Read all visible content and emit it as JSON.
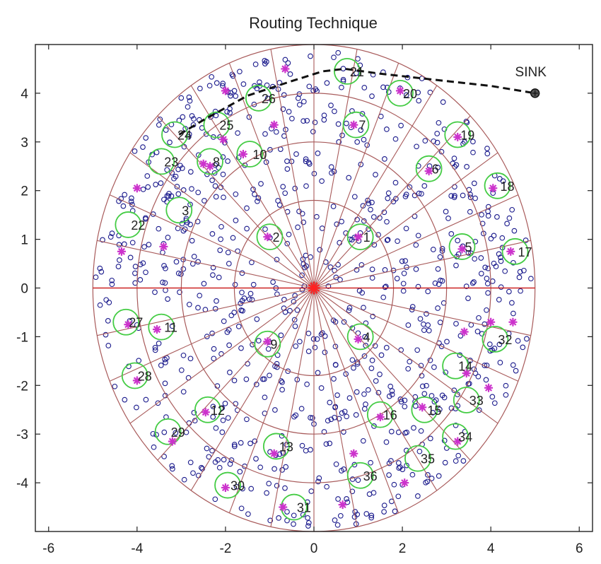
{
  "chart_data": {
    "type": "scatter",
    "title": "Routing Technique",
    "xlabel": "",
    "ylabel": "",
    "xlim": [
      -6.3,
      6.3
    ],
    "ylim": [
      -5,
      5
    ],
    "xticks": [
      -6,
      -4,
      -2,
      0,
      2,
      4,
      6
    ],
    "yticks": [
      -4,
      -3,
      -2,
      -1,
      0,
      1,
      2,
      3,
      4
    ],
    "grid": false,
    "field": {
      "center": [
        0,
        0
      ],
      "ring_radii": [
        1.8,
        3.0,
        4.0,
        5.0
      ],
      "sector_count": 32,
      "color": "#a85a5a"
    },
    "node_color": "#1a1a8c",
    "cluster_head_color": "#cc33cc",
    "cluster_ring_color": "#44cc44",
    "path_color": "#111111",
    "sink": {
      "label": "SINK",
      "x": 5.0,
      "y": 4.0
    },
    "route": [
      [
        -3.05,
        3.15
      ],
      [
        -2.5,
        3.45
      ],
      [
        -1.5,
        3.95
      ],
      [
        -0.5,
        4.25
      ],
      [
        0.2,
        4.45
      ],
      [
        0.7,
        4.5
      ],
      [
        1.5,
        4.4
      ],
      [
        3.0,
        4.25
      ],
      [
        4.0,
        4.15
      ],
      [
        5.0,
        4.0
      ]
    ],
    "cluster_heads": [
      {
        "id": "1",
        "x": 1.05,
        "y": 1.05
      },
      {
        "id": "2",
        "x": -1.0,
        "y": 1.05
      },
      {
        "id": "3",
        "x": -3.05,
        "y": 1.6
      },
      {
        "id": "4",
        "x": 1.05,
        "y": -1.0
      },
      {
        "id": "5",
        "x": 3.35,
        "y": 0.85
      },
      {
        "id": "6",
        "x": 2.6,
        "y": 2.45
      },
      {
        "id": "7",
        "x": 0.95,
        "y": 3.35
      },
      {
        "id": "8",
        "x": -2.35,
        "y": 2.6
      },
      {
        "id": "9",
        "x": -1.05,
        "y": -1.15
      },
      {
        "id": "10",
        "x": -1.45,
        "y": 2.75
      },
      {
        "id": "11",
        "x": -3.45,
        "y": -0.8
      },
      {
        "id": "12",
        "x": -2.4,
        "y": -2.5
      },
      {
        "id": "13",
        "x": -0.85,
        "y": -3.25
      },
      {
        "id": "14",
        "x": 3.2,
        "y": -1.6
      },
      {
        "id": "15",
        "x": 2.5,
        "y": -2.5
      },
      {
        "id": "16",
        "x": 1.5,
        "y": -2.6
      },
      {
        "id": "17",
        "x": 4.55,
        "y": 0.75
      },
      {
        "id": "18",
        "x": 4.15,
        "y": 2.1
      },
      {
        "id": "19",
        "x": 3.25,
        "y": 3.15
      },
      {
        "id": "20",
        "x": 1.95,
        "y": 4.0
      },
      {
        "id": "21",
        "x": 0.75,
        "y": 4.45
      },
      {
        "id": "22",
        "x": -4.2,
        "y": 1.3
      },
      {
        "id": "23",
        "x": -3.45,
        "y": 2.6
      },
      {
        "id": "24",
        "x": -3.15,
        "y": 3.15
      },
      {
        "id": "25",
        "x": -2.2,
        "y": 3.35
      },
      {
        "id": "26",
        "x": -1.25,
        "y": 3.9
      },
      {
        "id": "27",
        "x": -4.25,
        "y": -0.7
      },
      {
        "id": "28",
        "x": -4.05,
        "y": -1.8
      },
      {
        "id": "29",
        "x": -3.3,
        "y": -2.95
      },
      {
        "id": "30",
        "x": -1.95,
        "y": -4.05
      },
      {
        "id": "31",
        "x": -0.45,
        "y": -4.5
      },
      {
        "id": "32",
        "x": 4.1,
        "y": -1.05
      },
      {
        "id": "33",
        "x": 3.45,
        "y": -2.3
      },
      {
        "id": "34",
        "x": 3.2,
        "y": -3.05
      },
      {
        "id": "35",
        "x": 2.35,
        "y": -3.5
      },
      {
        "id": "36",
        "x": 1.05,
        "y": -3.85
      }
    ],
    "extra_markers": [
      [
        -2.0,
        4.05
      ],
      [
        -0.65,
        4.5
      ],
      [
        -0.9,
        3.35
      ],
      [
        -2.05,
        3.05
      ],
      [
        -4.0,
        2.05
      ],
      [
        -4.35,
        0.75
      ],
      [
        -3.4,
        0.85
      ],
      [
        -2.5,
        2.55
      ],
      [
        -4.0,
        -1.9
      ],
      [
        -3.2,
        -3.15
      ],
      [
        -2.45,
        -2.55
      ],
      [
        -0.9,
        -3.4
      ],
      [
        -2.0,
        -4.1
      ],
      [
        -0.7,
        -4.5
      ],
      [
        0.65,
        -4.45
      ],
      [
        0.9,
        -3.4
      ],
      [
        2.05,
        -4.0
      ],
      [
        1.5,
        -2.65
      ],
      [
        2.45,
        -2.45
      ],
      [
        3.25,
        -3.15
      ],
      [
        3.95,
        -2.05
      ],
      [
        3.45,
        -1.75
      ],
      [
        4.0,
        -0.7
      ],
      [
        3.4,
        -0.9
      ],
      [
        4.5,
        -0.7
      ],
      [
        4.45,
        0.75
      ],
      [
        3.35,
        0.8
      ],
      [
        4.05,
        2.05
      ],
      [
        2.6,
        2.4
      ],
      [
        3.25,
        3.1
      ],
      [
        1.95,
        4.05
      ],
      [
        0.9,
        3.35
      ],
      [
        1.0,
        1.05
      ],
      [
        -1.05,
        1.05
      ],
      [
        1.0,
        -1.05
      ],
      [
        -1.05,
        -1.1
      ],
      [
        -3.55,
        -0.85
      ],
      [
        -4.2,
        -0.75
      ],
      [
        -2.35,
        2.5
      ],
      [
        -1.6,
        2.75
      ]
    ],
    "node_count": 900,
    "node_seed": 12345
  }
}
